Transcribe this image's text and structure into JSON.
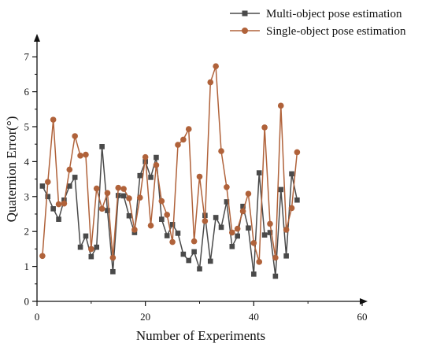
{
  "chart_data": {
    "type": "line",
    "xlabel": "Number of Experiments",
    "ylabel": "Quaternion Error(°)",
    "xlim": [
      0,
      60
    ],
    "ylim": [
      0,
      7.5
    ],
    "xticks": [
      0,
      20,
      40,
      60
    ],
    "yticks": [
      0,
      1,
      2,
      3,
      4,
      5,
      6,
      7
    ],
    "grid": false,
    "legend_position": "top-right",
    "series": [
      {
        "name": "Multi-object pose estimation",
        "color": "#4a4a4a",
        "marker": "square",
        "x": [
          1,
          2,
          3,
          4,
          5,
          6,
          7,
          8,
          9,
          10,
          11,
          12,
          13,
          14,
          15,
          16,
          17,
          18,
          19,
          20,
          21,
          22,
          23,
          24,
          25,
          26,
          27,
          28,
          29,
          30,
          31,
          32,
          33,
          34,
          35,
          36,
          37,
          38,
          39,
          40,
          41,
          42,
          43,
          44,
          45,
          46,
          47,
          48
        ],
        "y": [
          3.3,
          3.0,
          2.65,
          2.35,
          2.9,
          3.3,
          3.55,
          1.55,
          1.87,
          1.28,
          1.55,
          4.43,
          2.6,
          0.85,
          3.03,
          3.02,
          2.45,
          1.97,
          3.6,
          4.0,
          3.55,
          4.12,
          2.35,
          1.88,
          2.2,
          1.95,
          1.35,
          1.17,
          1.42,
          0.93,
          2.46,
          1.15,
          2.4,
          2.12,
          2.85,
          1.57,
          1.87,
          2.72,
          2.1,
          0.78,
          3.68,
          1.9,
          1.97,
          0.72,
          3.2,
          1.3,
          3.65,
          2.9
        ]
      },
      {
        "name": "Single-object pose estimation",
        "color": "#b0623a",
        "marker": "circle",
        "x": [
          1,
          2,
          3,
          4,
          5,
          6,
          7,
          8,
          9,
          10,
          11,
          12,
          13,
          14,
          15,
          16,
          17,
          18,
          19,
          20,
          21,
          22,
          23,
          24,
          25,
          26,
          27,
          28,
          29,
          30,
          31,
          32,
          33,
          34,
          35,
          36,
          37,
          38,
          39,
          40,
          41,
          42,
          43,
          44,
          45,
          46,
          47,
          48
        ],
        "y": [
          1.3,
          3.42,
          5.2,
          2.78,
          2.8,
          3.77,
          4.73,
          4.17,
          4.2,
          1.5,
          3.23,
          2.65,
          3.1,
          1.25,
          3.25,
          3.22,
          2.95,
          2.05,
          2.97,
          4.13,
          2.17,
          3.9,
          2.87,
          2.48,
          1.7,
          4.48,
          4.63,
          4.93,
          1.72,
          3.57,
          2.3,
          6.27,
          6.73,
          4.3,
          3.27,
          1.97,
          2.08,
          2.58,
          3.08,
          1.67,
          1.13,
          4.98,
          2.22,
          1.25,
          5.6,
          2.05,
          2.67,
          4.27
        ]
      }
    ]
  }
}
